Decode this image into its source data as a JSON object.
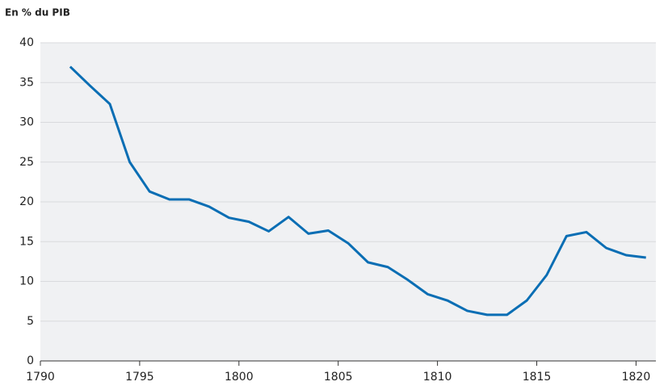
{
  "chart_data": {
    "type": "line",
    "y_label": "En % du PIB",
    "x": [
      1791.5,
      1792.5,
      1793.5,
      1794.5,
      1795.5,
      1796.5,
      1797.5,
      1798.5,
      1799.5,
      1800.5,
      1801.5,
      1802.5,
      1803.5,
      1804.5,
      1805.5,
      1806.5,
      1807.5,
      1808.5,
      1809.5,
      1810.5,
      1811.5,
      1812.5,
      1813.5,
      1814.5,
      1815.5,
      1816.5,
      1817.5,
      1818.5,
      1819.5,
      1820.5
    ],
    "series": [
      {
        "color": "#0a6eb4",
        "values": [
          37,
          34.6,
          32.3,
          25,
          21.3,
          20.3,
          20.3,
          19.4,
          18,
          17.5,
          16.3,
          18.1,
          16,
          16.4,
          14.8,
          12.4,
          11.8,
          10.2,
          8.4,
          7.6,
          6.3,
          5.8,
          5.8,
          7.6,
          10.8,
          15.7,
          16.2,
          14.2,
          13.3,
          13
        ]
      }
    ],
    "xlim": [
      1790,
      1821
    ],
    "xticks": [
      1790,
      1795,
      1800,
      1805,
      1810,
      1815,
      1820
    ],
    "ylim": [
      0,
      40
    ],
    "yticks": [
      0,
      5,
      10,
      15,
      20,
      25,
      30,
      35,
      40
    ],
    "grid": true
  }
}
